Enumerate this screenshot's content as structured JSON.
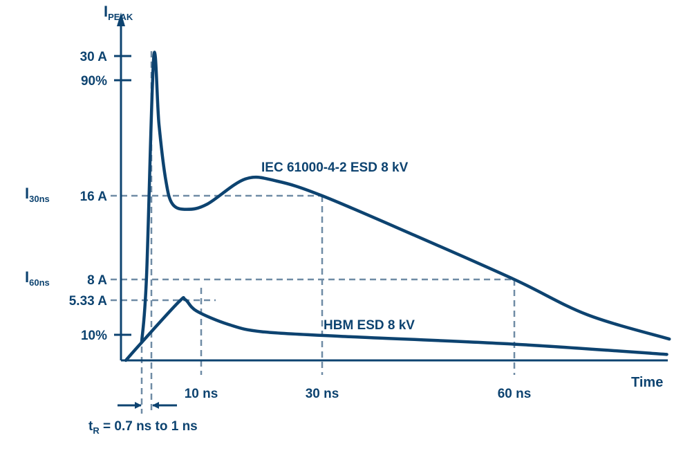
{
  "chart_data": {
    "type": "line",
    "title": "",
    "ylabel": "I",
    "ylabel_sub": "PEAK",
    "xlabel": "Time",
    "colors": {
      "curve": "#0d4370",
      "guide": "#6f8ba5"
    },
    "y_ticks": [
      {
        "value": 30,
        "label": "30 A"
      },
      {
        "value": 27,
        "label": "90%"
      },
      {
        "value": 16,
        "label": "16 A"
      },
      {
        "value": 8,
        "label": "8 A"
      },
      {
        "value": 5.33,
        "label": "5.33 A"
      },
      {
        "value": 3,
        "label": "10%"
      }
    ],
    "y_side_labels": [
      {
        "main": "I",
        "sub": "30ns",
        "value": 16
      },
      {
        "main": "I",
        "sub": "60ns",
        "value": 8
      }
    ],
    "x_ticks": [
      {
        "value": 10,
        "label": "10 ns"
      },
      {
        "value": 30,
        "label": "30 ns"
      },
      {
        "value": 60,
        "label": "60 ns"
      }
    ],
    "rise_time": {
      "main": "t",
      "sub": "R",
      "rest": " = 0.7 ns to 1 ns",
      "start": 2.1,
      "end": 3.4
    },
    "series": [
      {
        "name": "IEC 61000-4-2 ESD 8 kV",
        "points": [
          [
            2.1,
            2.1
          ],
          [
            2.75,
            8.3
          ],
          [
            3.7,
            29.8
          ],
          [
            4.4,
            22.8
          ],
          [
            5.3,
            17.5
          ],
          [
            6.2,
            15.2
          ],
          [
            8.1,
            14.7
          ],
          [
            11.0,
            15.2
          ],
          [
            17.3,
            17.6
          ],
          [
            22.5,
            17.4
          ],
          [
            30,
            16
          ],
          [
            44.5,
            12.2
          ],
          [
            60,
            8
          ],
          [
            71.4,
            4.35
          ],
          [
            84.2,
            2.5
          ]
        ]
      },
      {
        "name": "HBM ESD 8 kV",
        "points": [
          [
            0,
            0
          ],
          [
            2.1,
            2.1
          ],
          [
            7.0,
            5.2
          ],
          [
            7.9,
            5.4
          ],
          [
            9.4,
            4.6
          ],
          [
            14.5,
            3.7
          ],
          [
            20.2,
            3.2
          ],
          [
            33.6,
            2.8
          ],
          [
            60,
            1.9
          ],
          [
            83.8,
            0.7
          ]
        ]
      }
    ]
  }
}
